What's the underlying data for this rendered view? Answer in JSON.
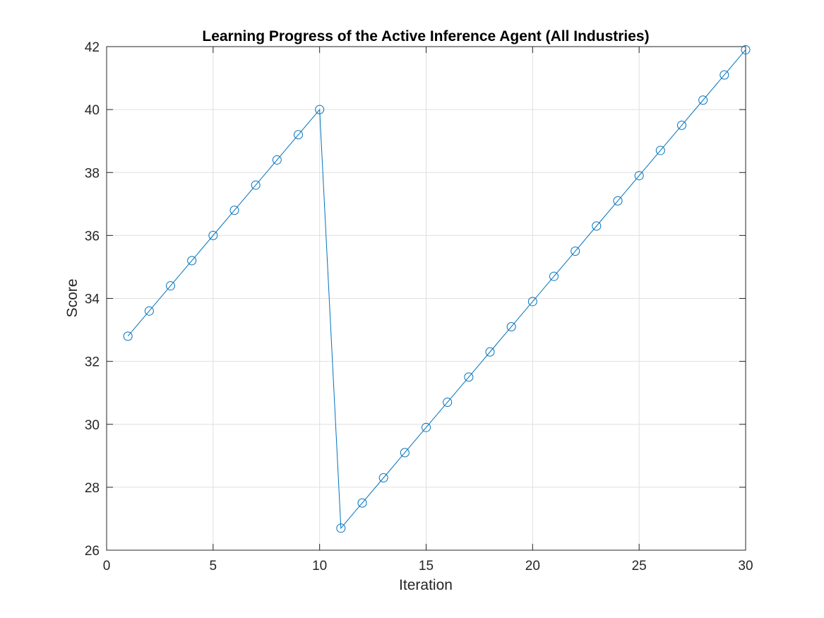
{
  "colors": {
    "series": "#0072bd",
    "axis": "#262626",
    "grid": "#dfdfdf",
    "background": "#ffffff"
  },
  "chart_data": {
    "type": "line",
    "title": "Learning Progress of the Active Inference Agent (All Industries)",
    "xlabel": "Iteration",
    "ylabel": "Score",
    "xlim": [
      0,
      30
    ],
    "ylim": [
      26,
      42
    ],
    "xticks": [
      0,
      5,
      10,
      15,
      20,
      25,
      30
    ],
    "yticks": [
      26,
      28,
      30,
      32,
      34,
      36,
      38,
      40,
      42
    ],
    "grid": true,
    "marker": "circle",
    "series": [
      {
        "x": [
          1,
          2,
          3,
          4,
          5,
          6,
          7,
          8,
          9,
          10,
          11,
          12,
          13,
          14,
          15,
          16,
          17,
          18,
          19,
          20,
          21,
          22,
          23,
          24,
          25,
          26,
          27,
          28,
          29,
          30
        ],
        "values": [
          32.8,
          33.6,
          34.4,
          35.2,
          36.0,
          36.8,
          37.6,
          38.4,
          39.2,
          40.0,
          26.7,
          27.5,
          28.3,
          29.1,
          29.9,
          30.7,
          31.5,
          32.3,
          33.1,
          33.9,
          34.7,
          35.5,
          36.3,
          37.1,
          37.9,
          38.7,
          39.5,
          40.3,
          41.1,
          41.9
        ]
      }
    ]
  }
}
